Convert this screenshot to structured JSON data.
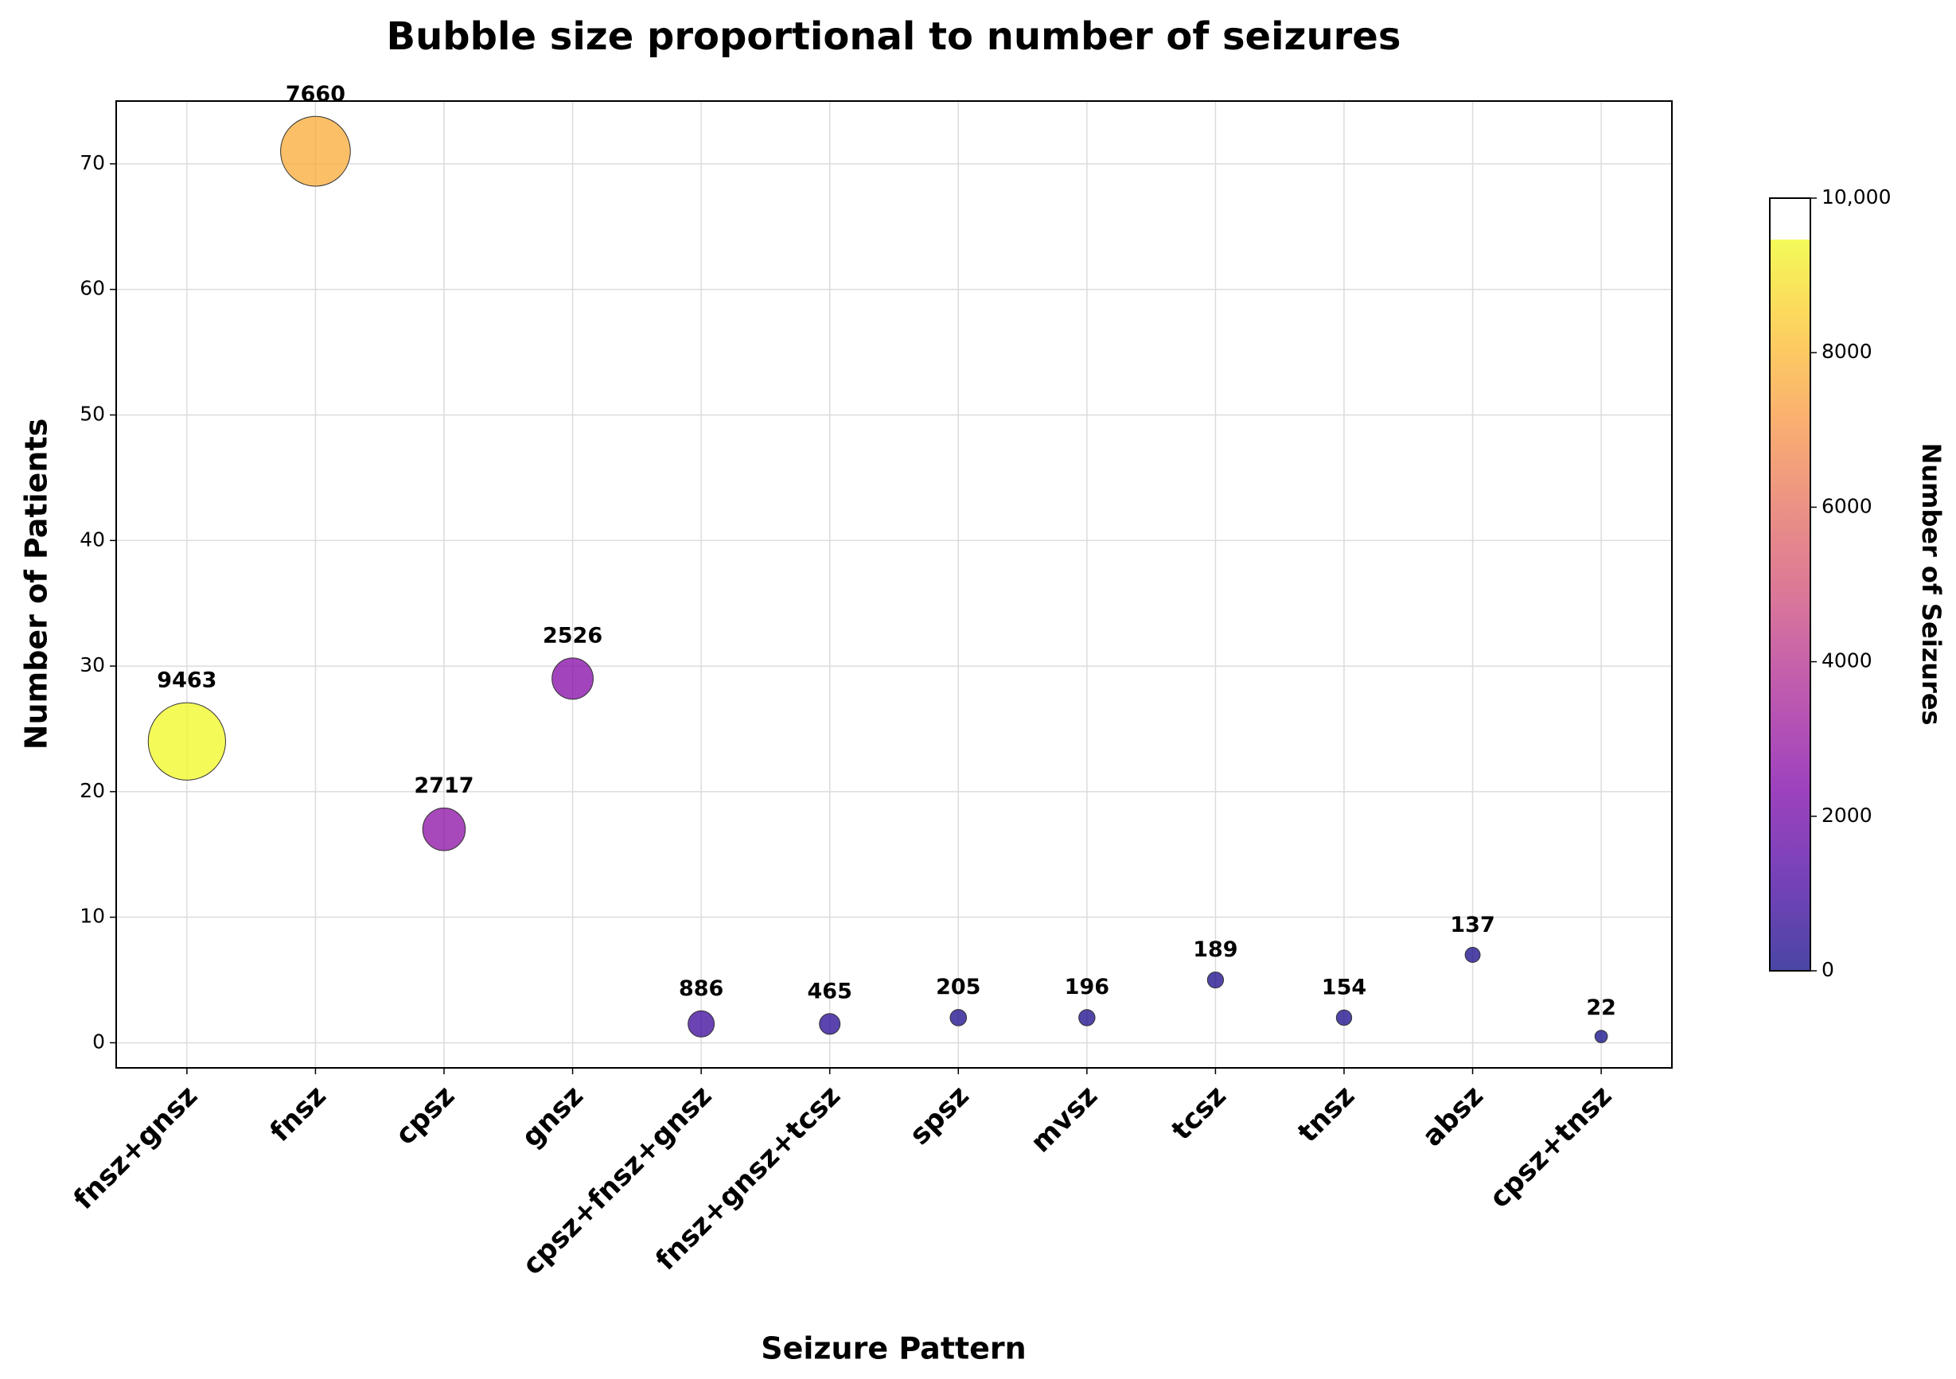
{
  "chart_data": {
    "type": "bubble",
    "title": "Bubble size proportional to number of seizures",
    "x_label": "Seizure Pattern",
    "y_label": "Number of Patients",
    "categories": [
      "fnsz+gnsz",
      "fnsz",
      "cpsz",
      "gnsz",
      "cpsz+fnsz+gnsz",
      "fnsz+gnsz+tcsz",
      "spsz",
      "mvsz",
      "tcsz",
      "tnsz",
      "absz",
      "cpsz+tnsz"
    ],
    "values": [
      24,
      71,
      17,
      29,
      1.5,
      1.5,
      2,
      2,
      5,
      2,
      7,
      0.5
    ],
    "sizes": [
      9463,
      7660,
      2717,
      2526,
      886,
      465,
      205,
      196,
      189,
      154,
      137,
      22
    ],
    "ylim": [
      -2,
      75
    ],
    "yticks": [
      0,
      10,
      20,
      30,
      40,
      50,
      60,
      70
    ],
    "grid": true,
    "colormap": "plasma",
    "colorbar_label": "Number of Seizures",
    "clim": [
      0,
      10000
    ],
    "cticks": [
      0,
      2000,
      4000,
      6000,
      8000,
      {
        "value": 10000,
        "label": "10,000"
      }
    ]
  }
}
